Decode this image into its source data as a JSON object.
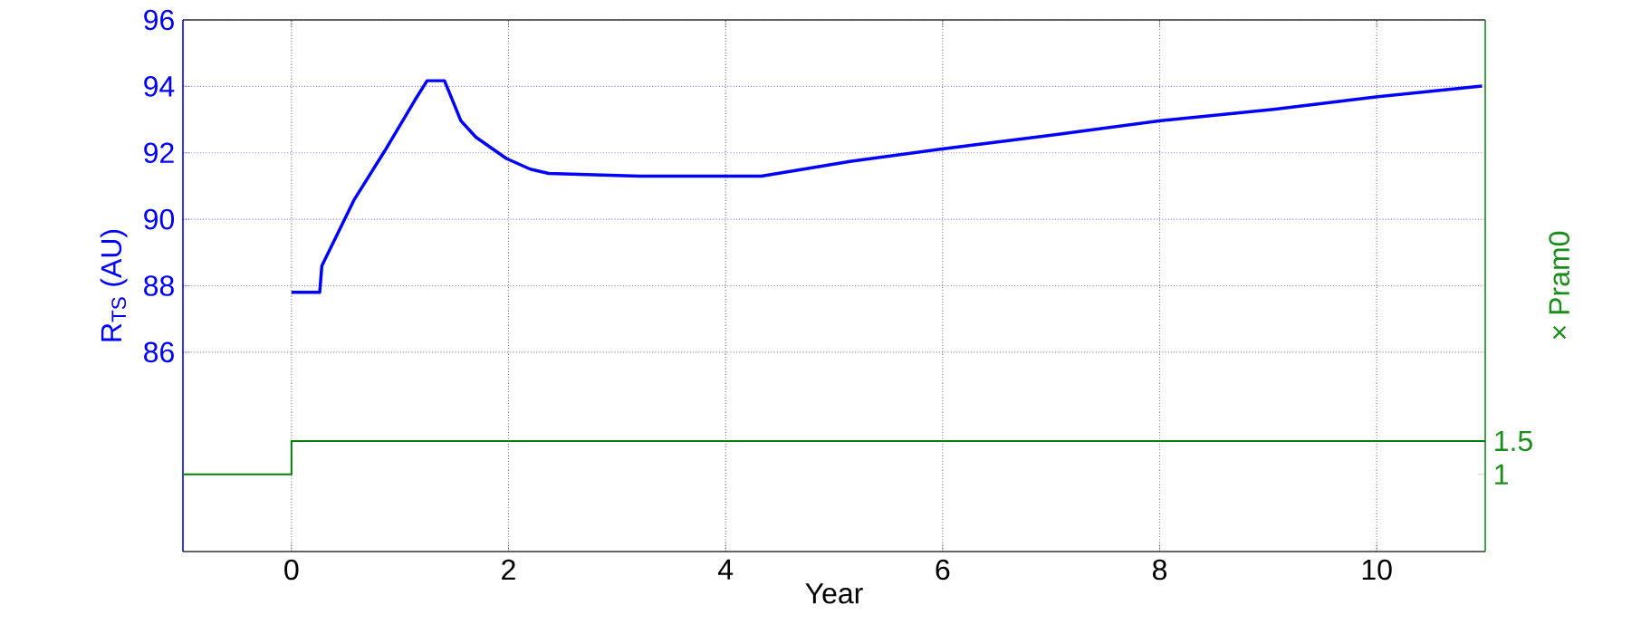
{
  "chart_data": {
    "type": "line",
    "xlabel": "Year",
    "ylabel": "R$_{TS}$ (AU)",
    "y2label": "× Pram0",
    "xlim": [
      -1,
      11
    ],
    "xticks": [
      0,
      2,
      4,
      6,
      8,
      10
    ],
    "ylim": [
      80,
      96
    ],
    "yticks": [
      86,
      88,
      90,
      92,
      94,
      96
    ],
    "y2lim": [
      -0.16,
      7.83
    ],
    "y2ticks": [
      1,
      1.5
    ],
    "grid": true,
    "series": [
      {
        "color": "#0000ff",
        "x": [
          0,
          0.26,
          0.28,
          0.58,
          0.86,
          1.14,
          1.25,
          1.41,
          1.56,
          1.7,
          1.98,
          2.2,
          2.37,
          3.21,
          4.33,
          5.16,
          5.96,
          7.02,
          8.01,
          9.05,
          10.01,
          10.97
        ],
        "values": [
          87.8,
          87.8,
          88.6,
          90.6,
          92.06,
          93.6,
          94.17,
          94.17,
          92.97,
          92.47,
          91.83,
          91.51,
          91.38,
          91.3,
          91.3,
          91.75,
          92.1,
          92.54,
          92.97,
          93.31,
          93.69,
          94.01
        ]
      },
      {
        "type": "step",
        "axis": "y2",
        "color": "#008000",
        "x": [
          -1,
          0,
          11
        ],
        "values": [
          1,
          1.5,
          1.5
        ]
      }
    ]
  }
}
